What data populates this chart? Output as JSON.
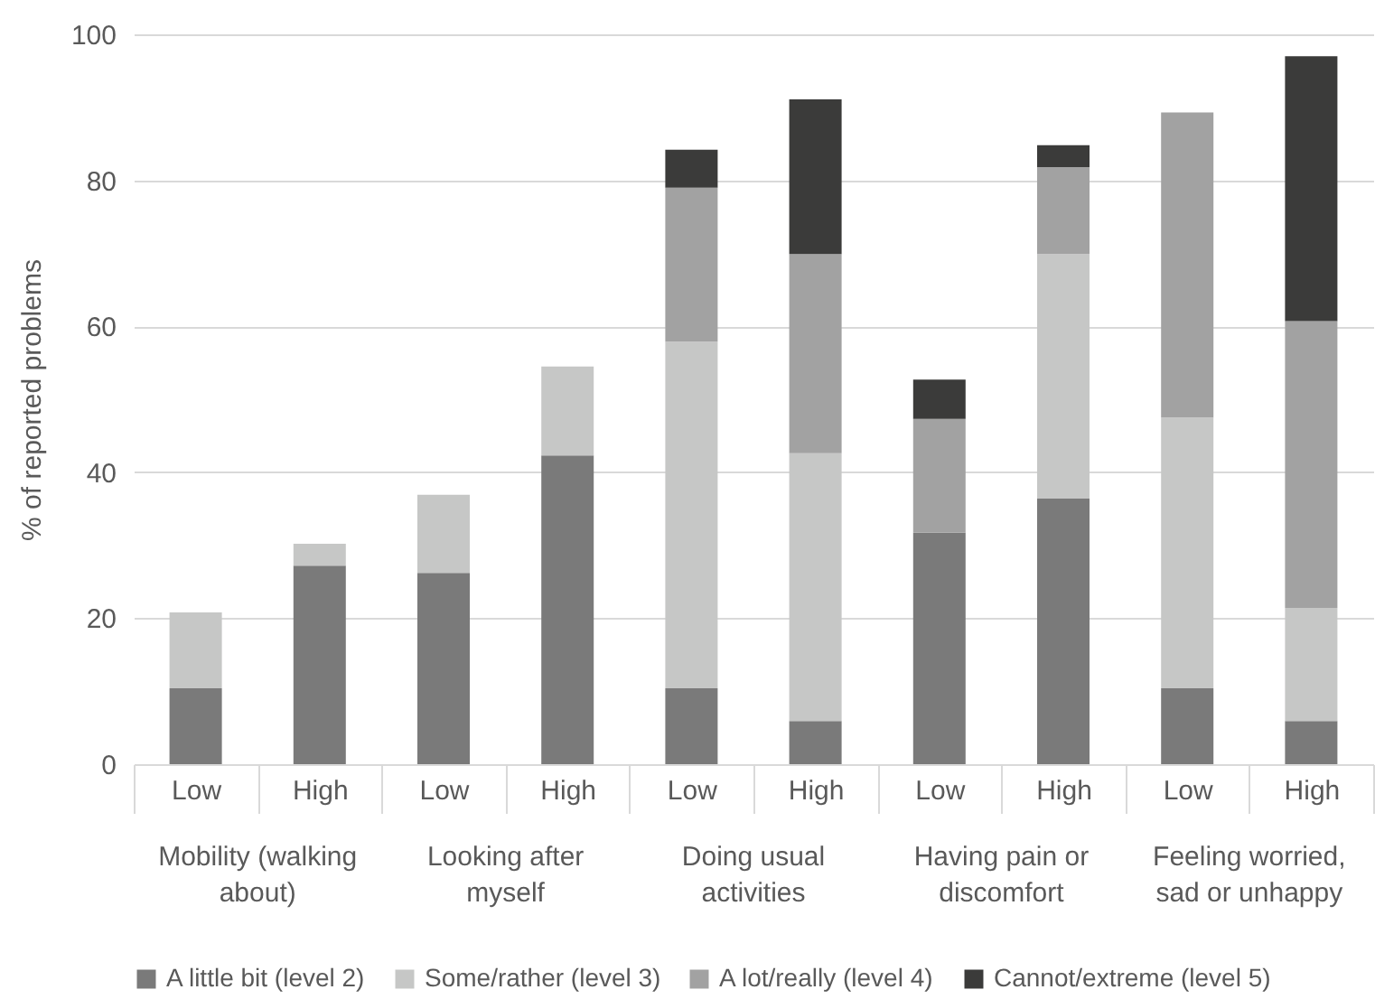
{
  "chart_data": {
    "type": "bar",
    "stacked": true,
    "ylabel": "% of reported problems",
    "categories": [
      "Low",
      "High",
      "Low",
      "High",
      "Low",
      "High",
      "Low",
      "High",
      "Low",
      "High"
    ],
    "annotations": [
      "Mobility (walking about)",
      "Looking after myself",
      "Doing usual activities",
      "Having pain or discomfort",
      "Feeling worried, sad or unhappy"
    ],
    "series": [
      {
        "name": "A little bit (level 2)",
        "color": "#7a7a7a",
        "values": [
          10.4,
          27.2,
          26.2,
          42.3,
          10.4,
          5.9,
          31.7,
          36.4,
          10.4,
          5.9
        ]
      },
      {
        "name": "Some/rather (level 3)",
        "color": "#c6c7c6",
        "values": [
          10.4,
          3.0,
          10.7,
          12.2,
          47.5,
          36.7,
          null,
          33.5,
          37.1,
          15.5
        ]
      },
      {
        "name": "A lot/really (level 4)",
        "color": "#a2a2a2",
        "values": [
          null,
          null,
          null,
          null,
          21.1,
          27.3,
          15.6,
          11.9,
          41.8,
          39.3
        ]
      },
      {
        "name": "Cannot/extreme (level 5)",
        "color": "#3b3b3a",
        "values": [
          null,
          null,
          null,
          null,
          5.2,
          21.2,
          5.4,
          3.0,
          null,
          36.3
        ]
      }
    ],
    "ylim": [
      0,
      100
    ],
    "yticks": [
      0,
      20,
      40,
      60,
      80,
      100
    ],
    "grid": "y",
    "legend": "bottom"
  }
}
